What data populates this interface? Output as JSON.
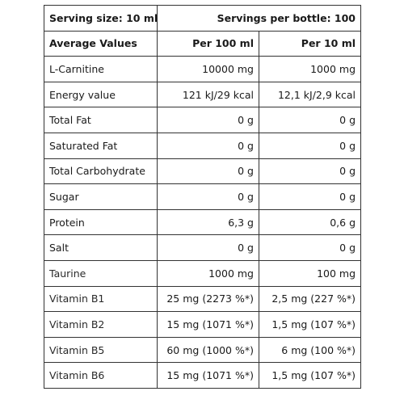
{
  "header": {
    "serving_size": "Serving size: 10 ml",
    "servings_per_bottle": "Servings per bottle: 100"
  },
  "columns": {
    "label": "Average Values",
    "per100": "Per 100 ml",
    "per10": "Per 10 ml"
  },
  "rows": [
    {
      "name": "L-Carnitine",
      "per100": "10000 mg",
      "per10": "1000 mg",
      "indent": false
    },
    {
      "name": "Energy value",
      "per100": "121 kJ/29 kcal",
      "per10": "12,1 kJ/2,9 kcal",
      "indent": false
    },
    {
      "name": "Total Fat",
      "per100": "0 g",
      "per10": "0 g",
      "indent": false
    },
    {
      "name": "Saturated Fat",
      "per100": "0 g",
      "per10": "0 g",
      "indent": true
    },
    {
      "name": "Total Carbohydrate",
      "per100": "0 g",
      "per10": "0 g",
      "indent": false
    },
    {
      "name": "Sugar",
      "per100": "0 g",
      "per10": "0 g",
      "indent": true
    },
    {
      "name": "Protein",
      "per100": "6,3 g",
      "per10": "0,6 g",
      "indent": false
    },
    {
      "name": "Salt",
      "per100": "0 g",
      "per10": "0 g",
      "indent": false
    },
    {
      "name": "Taurine",
      "per100": "1000 mg",
      "per10": "100 mg",
      "indent": false
    },
    {
      "name": "Vitamin B1",
      "per100": "25 mg (2273 %*)",
      "per10": "2,5 mg (227 %*)",
      "indent": false
    },
    {
      "name": "Vitamin B2",
      "per100": "15 mg (1071 %*)",
      "per10": "1,5 mg (107 %*)",
      "indent": false
    },
    {
      "name": "Vitamin B5",
      "per100": "60 mg (1000 %*)",
      "per10": "6 mg (100 %*)",
      "indent": false
    },
    {
      "name": "Vitamin B6",
      "per100": "15 mg (1071 %*)",
      "per10": "1,5 mg (107 %*)",
      "indent": false
    }
  ]
}
